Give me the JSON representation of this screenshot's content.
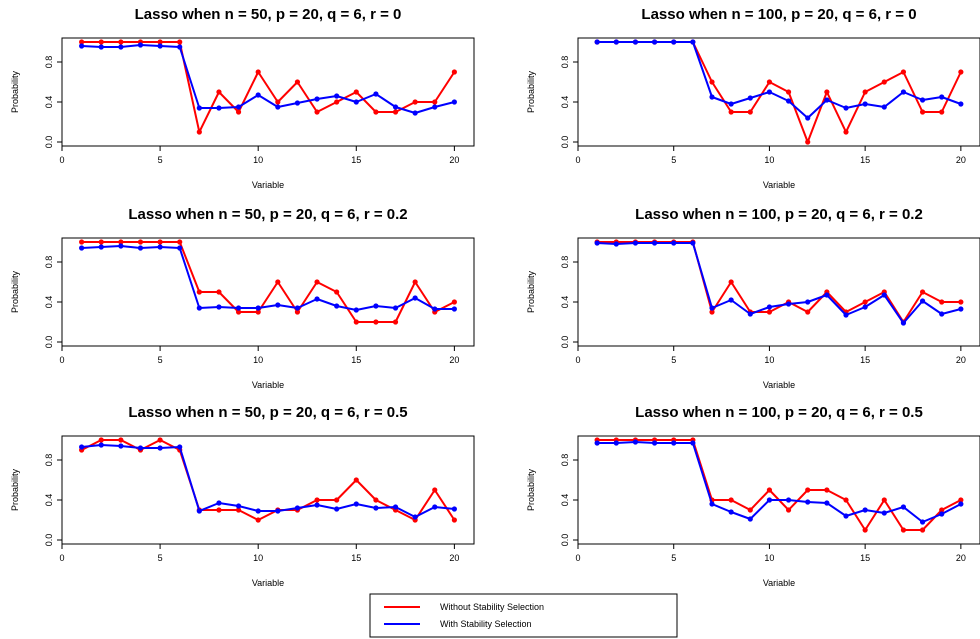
{
  "chart_data": [
    {
      "type": "line",
      "title": "Lasso when n = 50, p = 20, q = 6, r = 0",
      "xlabel": "Variable",
      "ylabel": "Probability",
      "xlim": [
        0,
        21
      ],
      "ylim": [
        0,
        1
      ],
      "xticks": [
        0,
        5,
        10,
        15,
        20
      ],
      "yticks": [
        0.0,
        0.4,
        0.8
      ],
      "x": [
        1,
        2,
        3,
        4,
        5,
        6,
        7,
        8,
        9,
        10,
        11,
        12,
        13,
        14,
        15,
        16,
        17,
        18,
        19,
        20
      ],
      "series": [
        {
          "name": "Without Stability Selection",
          "color": "#ff0000",
          "values": [
            1.0,
            1.0,
            1.0,
            1.0,
            1.0,
            1.0,
            0.1,
            0.5,
            0.3,
            0.7,
            0.4,
            0.6,
            0.3,
            0.4,
            0.5,
            0.3,
            0.3,
            0.4,
            0.4,
            0.7
          ]
        },
        {
          "name": "With Stability Selection",
          "color": "#0000ff",
          "values": [
            0.96,
            0.95,
            0.95,
            0.97,
            0.96,
            0.95,
            0.34,
            0.34,
            0.35,
            0.47,
            0.35,
            0.39,
            0.43,
            0.46,
            0.4,
            0.48,
            0.35,
            0.29,
            0.35,
            0.4
          ]
        }
      ]
    },
    {
      "type": "line",
      "title": "Lasso when n = 100, p = 20, q = 6, r = 0",
      "xlabel": "Variable",
      "ylabel": "Probability",
      "xlim": [
        0,
        21
      ],
      "ylim": [
        0,
        1
      ],
      "xticks": [
        0,
        5,
        10,
        15,
        20
      ],
      "yticks": [
        0.0,
        0.4,
        0.8
      ],
      "x": [
        1,
        2,
        3,
        4,
        5,
        6,
        7,
        8,
        9,
        10,
        11,
        12,
        13,
        14,
        15,
        16,
        17,
        18,
        19,
        20
      ],
      "series": [
        {
          "name": "Without Stability Selection",
          "color": "#ff0000",
          "values": [
            1.0,
            1.0,
            1.0,
            1.0,
            1.0,
            1.0,
            0.6,
            0.3,
            0.3,
            0.6,
            0.5,
            0.0,
            0.5,
            0.1,
            0.5,
            0.6,
            0.7,
            0.3,
            0.3,
            0.7
          ]
        },
        {
          "name": "With Stability Selection",
          "color": "#0000ff",
          "values": [
            1.0,
            1.0,
            1.0,
            1.0,
            1.0,
            1.0,
            0.45,
            0.38,
            0.44,
            0.5,
            0.41,
            0.24,
            0.42,
            0.34,
            0.38,
            0.35,
            0.5,
            0.42,
            0.45,
            0.38
          ]
        }
      ]
    },
    {
      "type": "line",
      "title": "Lasso when n = 50, p = 20, q = 6, r = 0.2",
      "xlabel": "Variable",
      "ylabel": "Probability",
      "xlim": [
        0,
        21
      ],
      "ylim": [
        0,
        1
      ],
      "xticks": [
        0,
        5,
        10,
        15,
        20
      ],
      "yticks": [
        0.0,
        0.4,
        0.8
      ],
      "x": [
        1,
        2,
        3,
        4,
        5,
        6,
        7,
        8,
        9,
        10,
        11,
        12,
        13,
        14,
        15,
        16,
        17,
        18,
        19,
        20
      ],
      "series": [
        {
          "name": "Without Stability Selection",
          "color": "#ff0000",
          "values": [
            1.0,
            1.0,
            1.0,
            1.0,
            1.0,
            1.0,
            0.5,
            0.5,
            0.3,
            0.3,
            0.6,
            0.3,
            0.6,
            0.5,
            0.2,
            0.2,
            0.2,
            0.6,
            0.3,
            0.4
          ]
        },
        {
          "name": "With Stability Selection",
          "color": "#0000ff",
          "values": [
            0.94,
            0.95,
            0.96,
            0.94,
            0.95,
            0.94,
            0.34,
            0.35,
            0.34,
            0.34,
            0.37,
            0.34,
            0.43,
            0.36,
            0.32,
            0.36,
            0.34,
            0.44,
            0.33,
            0.33
          ]
        }
      ]
    },
    {
      "type": "line",
      "title": "Lasso when n = 100, p = 20, q = 6, r = 0.2",
      "xlabel": "Variable",
      "ylabel": "Probability",
      "xlim": [
        0,
        21
      ],
      "ylim": [
        0,
        1
      ],
      "xticks": [
        0,
        5,
        10,
        15,
        20
      ],
      "yticks": [
        0.0,
        0.4,
        0.8
      ],
      "x": [
        1,
        2,
        3,
        4,
        5,
        6,
        7,
        8,
        9,
        10,
        11,
        12,
        13,
        14,
        15,
        16,
        17,
        18,
        19,
        20
      ],
      "series": [
        {
          "name": "Without Stability Selection",
          "color": "#ff0000",
          "values": [
            1.0,
            1.0,
            1.0,
            1.0,
            1.0,
            1.0,
            0.3,
            0.6,
            0.3,
            0.3,
            0.4,
            0.3,
            0.5,
            0.3,
            0.4,
            0.5,
            0.2,
            0.5,
            0.4,
            0.4
          ]
        },
        {
          "name": "With Stability Selection",
          "color": "#0000ff",
          "values": [
            0.99,
            0.98,
            0.99,
            0.99,
            0.99,
            0.99,
            0.34,
            0.42,
            0.28,
            0.35,
            0.38,
            0.4,
            0.47,
            0.27,
            0.35,
            0.47,
            0.19,
            0.41,
            0.28,
            0.33
          ]
        }
      ]
    },
    {
      "type": "line",
      "title": "Lasso when n = 50, p = 20, q = 6, r = 0.5",
      "xlabel": "Variable",
      "ylabel": "Probability",
      "xlim": [
        0,
        21
      ],
      "ylim": [
        0,
        1
      ],
      "xticks": [
        0,
        5,
        10,
        15,
        20
      ],
      "yticks": [
        0.0,
        0.4,
        0.8
      ],
      "x": [
        1,
        2,
        3,
        4,
        5,
        6,
        7,
        8,
        9,
        10,
        11,
        12,
        13,
        14,
        15,
        16,
        17,
        18,
        19,
        20
      ],
      "series": [
        {
          "name": "Without Stability Selection",
          "color": "#ff0000",
          "values": [
            0.9,
            1.0,
            1.0,
            0.9,
            1.0,
            0.9,
            0.3,
            0.3,
            0.3,
            0.2,
            0.3,
            0.3,
            0.4,
            0.4,
            0.6,
            0.4,
            0.3,
            0.2,
            0.5,
            0.2
          ]
        },
        {
          "name": "With Stability Selection",
          "color": "#0000ff",
          "values": [
            0.93,
            0.95,
            0.94,
            0.92,
            0.92,
            0.93,
            0.29,
            0.37,
            0.34,
            0.29,
            0.29,
            0.32,
            0.35,
            0.31,
            0.36,
            0.32,
            0.33,
            0.23,
            0.33,
            0.31
          ]
        }
      ]
    },
    {
      "type": "line",
      "title": "Lasso when n = 100, p = 20, q = 6, r = 0.5",
      "xlabel": "Variable",
      "ylabel": "Probability",
      "xlim": [
        0,
        21
      ],
      "ylim": [
        0,
        1
      ],
      "xticks": [
        0,
        5,
        10,
        15,
        20
      ],
      "yticks": [
        0.0,
        0.4,
        0.8
      ],
      "x": [
        1,
        2,
        3,
        4,
        5,
        6,
        7,
        8,
        9,
        10,
        11,
        12,
        13,
        14,
        15,
        16,
        17,
        18,
        19,
        20
      ],
      "series": [
        {
          "name": "Without Stability Selection",
          "color": "#ff0000",
          "values": [
            1.0,
            1.0,
            1.0,
            1.0,
            1.0,
            1.0,
            0.4,
            0.4,
            0.3,
            0.5,
            0.3,
            0.5,
            0.5,
            0.4,
            0.1,
            0.4,
            0.1,
            0.1,
            0.3,
            0.4
          ]
        },
        {
          "name": "With Stability Selection",
          "color": "#0000ff",
          "values": [
            0.97,
            0.97,
            0.98,
            0.97,
            0.97,
            0.97,
            0.36,
            0.28,
            0.21,
            0.4,
            0.4,
            0.38,
            0.37,
            0.24,
            0.3,
            0.27,
            0.33,
            0.18,
            0.26,
            0.36
          ]
        }
      ]
    }
  ],
  "legend": {
    "placement": "bottom-center",
    "entries": [
      {
        "label": "Without Stability Selection",
        "color": "#ff0000"
      },
      {
        "label": "With Stability Selection",
        "color": "#0000ff"
      }
    ]
  }
}
